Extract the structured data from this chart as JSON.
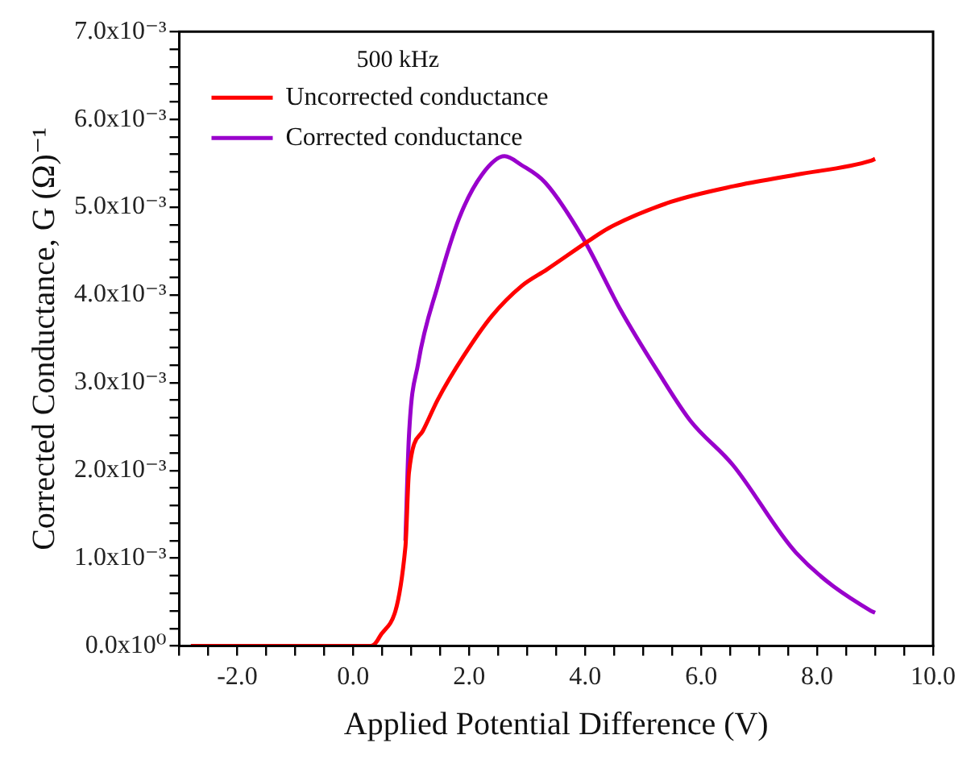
{
  "chart_data": {
    "type": "line",
    "xlabel": "Applied Potential Difference (V)",
    "ylabel": "Corrected Conductance, G (Ω)⁻¹",
    "legend_title": "500 kHz",
    "legend": "top left",
    "grid": false,
    "marker": "none",
    "line_style": "solid",
    "xlim": [
      -3,
      10
    ],
    "ylim": [
      0,
      0.007
    ],
    "xticks": [
      {
        "value": -3,
        "label": null
      },
      {
        "value": -2.5,
        "label": null
      },
      {
        "value": -2,
        "label": "-2.0"
      },
      {
        "value": -1.5,
        "label": null
      },
      {
        "value": -1,
        "label": null
      },
      {
        "value": -0.5,
        "label": null
      },
      {
        "value": 0,
        "label": "0.0"
      },
      {
        "value": 0.5,
        "label": null
      },
      {
        "value": 1,
        "label": null
      },
      {
        "value": 1.5,
        "label": null
      },
      {
        "value": 2,
        "label": "2.0"
      },
      {
        "value": 2.5,
        "label": null
      },
      {
        "value": 3,
        "label": null
      },
      {
        "value": 3.5,
        "label": null
      },
      {
        "value": 4,
        "label": "4.0"
      },
      {
        "value": 4.5,
        "label": null
      },
      {
        "value": 5,
        "label": null
      },
      {
        "value": 5.5,
        "label": null
      },
      {
        "value": 6,
        "label": "6.0"
      },
      {
        "value": 6.5,
        "label": null
      },
      {
        "value": 7,
        "label": null
      },
      {
        "value": 7.5,
        "label": null
      },
      {
        "value": 8,
        "label": "8.0"
      },
      {
        "value": 8.5,
        "label": null
      },
      {
        "value": 9,
        "label": null
      },
      {
        "value": 9.5,
        "label": null
      },
      {
        "value": 10,
        "label": "10.0"
      }
    ],
    "yticks": [
      {
        "value": 0,
        "label": "0.0x10⁰"
      },
      {
        "value": 0.0002,
        "label": null
      },
      {
        "value": 0.0004,
        "label": null
      },
      {
        "value": 0.0006,
        "label": null
      },
      {
        "value": 0.0008,
        "label": null
      },
      {
        "value": 0.001,
        "label": "1.0x10⁻³"
      },
      {
        "value": 0.0012,
        "label": null
      },
      {
        "value": 0.0014,
        "label": null
      },
      {
        "value": 0.0016,
        "label": null
      },
      {
        "value": 0.0018,
        "label": null
      },
      {
        "value": 0.002,
        "label": "2.0x10⁻³"
      },
      {
        "value": 0.0022,
        "label": null
      },
      {
        "value": 0.0024,
        "label": null
      },
      {
        "value": 0.0026,
        "label": null
      },
      {
        "value": 0.0028,
        "label": null
      },
      {
        "value": 0.003,
        "label": "3.0x10⁻³"
      },
      {
        "value": 0.0032,
        "label": null
      },
      {
        "value": 0.0034,
        "label": null
      },
      {
        "value": 0.0036,
        "label": null
      },
      {
        "value": 0.0038,
        "label": null
      },
      {
        "value": 0.004,
        "label": "4.0x10⁻³"
      },
      {
        "value": 0.0042,
        "label": null
      },
      {
        "value": 0.0044,
        "label": null
      },
      {
        "value": 0.0046,
        "label": null
      },
      {
        "value": 0.0048,
        "label": null
      },
      {
        "value": 0.005,
        "label": "5.0x10⁻³"
      },
      {
        "value": 0.0052,
        "label": null
      },
      {
        "value": 0.0054,
        "label": null
      },
      {
        "value": 0.0056,
        "label": null
      },
      {
        "value": 0.0058,
        "label": null
      },
      {
        "value": 0.006,
        "label": "6.0x10⁻³"
      },
      {
        "value": 0.0062,
        "label": null
      },
      {
        "value": 0.0064,
        "label": null
      },
      {
        "value": 0.0066,
        "label": null
      },
      {
        "value": 0.0068,
        "label": null
      },
      {
        "value": 0.007,
        "label": "7.0x10⁻³"
      }
    ],
    "series": [
      {
        "name": "Uncorrected conductance",
        "color": "#ff0000",
        "x": [
          -2.8,
          0,
          0.3,
          0.45,
          0.9,
          0.96,
          1.2,
          1.46,
          1.9,
          2.39,
          2.9,
          3.34,
          4.07,
          4.4,
          5.48,
          6.57,
          7.64,
          8.93,
          9.0
        ],
        "values": [
          0,
          0,
          0,
          0.0001,
          0.00113,
          0.00197,
          0.00245,
          0.00281,
          0.0033,
          0.00376,
          0.0041,
          0.00429,
          0.00462,
          0.00476,
          0.00506,
          0.00524,
          0.00537,
          0.00553,
          0.00555
        ]
      },
      {
        "name": "Corrected conductance",
        "color": "#9900cc",
        "x": [
          0.9,
          0.96,
          1.12,
          1.46,
          1.83,
          2.22,
          2.61,
          2.9,
          3.31,
          3.96,
          4.61,
          5.25,
          5.81,
          6.55,
          7.64,
          8.93,
          9.0
        ],
        "values": [
          0.0012,
          0.00238,
          0.00322,
          0.00411,
          0.00488,
          0.00537,
          0.00558,
          0.00548,
          0.00528,
          0.00465,
          0.00383,
          0.00313,
          0.00257,
          0.00206,
          0.00106,
          0.0004,
          0.00038
        ]
      }
    ]
  }
}
